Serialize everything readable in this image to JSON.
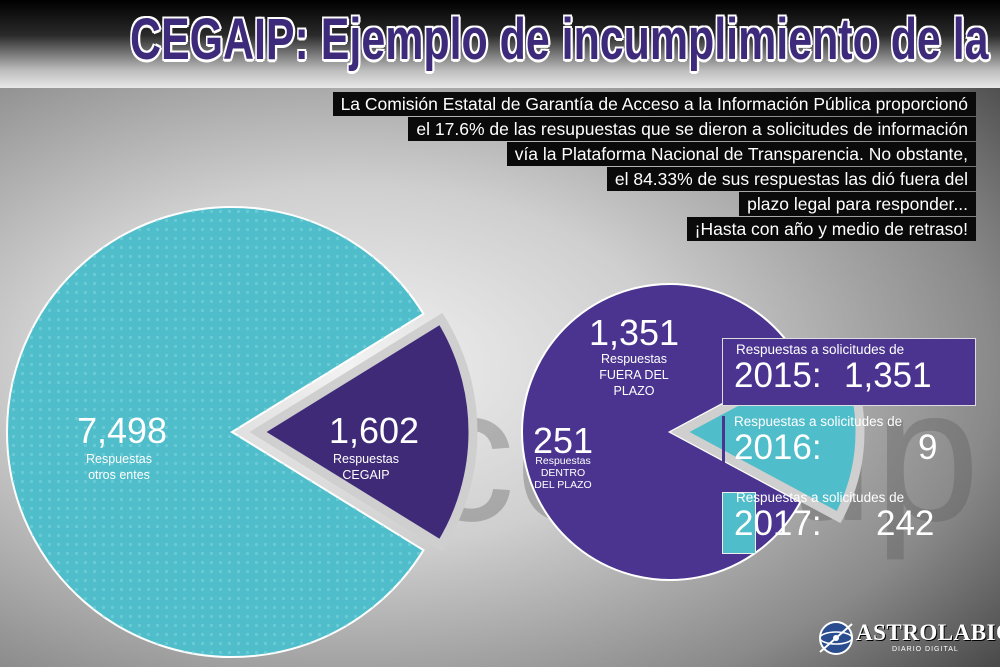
{
  "title": "CEGAIP: Ejemplo de incumplimiento de la Ley",
  "intro_lines": [
    "La Comisión Estatal de Garantía de Acceso a la Información Pública proporcionó",
    "el 17.6% de las resupuestas que se dieron a solicitudes de información",
    "vía la Plataforma Nacional de Transparencia. No obstante,",
    "el 84.33% de sus respuestas las dió fuera del",
    "plazo legal para responder...",
    "¡Hasta con año y medio de retraso!"
  ],
  "chart_data": [
    {
      "type": "pie",
      "categories": [
        "Respuestas otros entes",
        "Respuestas CEGAIP"
      ],
      "values": [
        7498,
        1602
      ],
      "value_labels": [
        "7,498",
        "1,602"
      ],
      "colors": [
        "#4fbdca",
        "#3f2a78"
      ]
    },
    {
      "type": "pie",
      "categories": [
        "Respuestas FUERA DEL PLAZO",
        "Respuestas DENTRO DEL PLAZO"
      ],
      "values": [
        1351,
        251
      ],
      "value_labels": [
        "1,351",
        "251"
      ],
      "colors": [
        "#4a3490",
        "#4fbdca"
      ]
    }
  ],
  "labels": {
    "otros": [
      "Respuestas",
      "otros entes"
    ],
    "cegaip": [
      "Respuestas",
      "CEGAIP"
    ],
    "fuera": [
      "Respuestas",
      "FUERA DEL",
      "PLAZO"
    ],
    "dentro": [
      "Respuestas",
      "DENTRO",
      "DEL PLAZO"
    ]
  },
  "years": [
    {
      "label": "Respuestas a solicitudes de",
      "year": "2015:",
      "value": "1,351",
      "count": 1351,
      "color": "#4a3490"
    },
    {
      "label": "Respuestas a solicitudes de",
      "year": "2016:",
      "value": "9",
      "count": 9,
      "color": "#4a3490"
    },
    {
      "label": "Respuestas a solicitudes de",
      "year": "2017:",
      "value": "242",
      "count": 242,
      "color": "#4fbdca"
    }
  ],
  "watermark": "cegaip",
  "logo": {
    "name": "ASTROLABIO",
    "sub": "DIARIO DIGITAL"
  }
}
